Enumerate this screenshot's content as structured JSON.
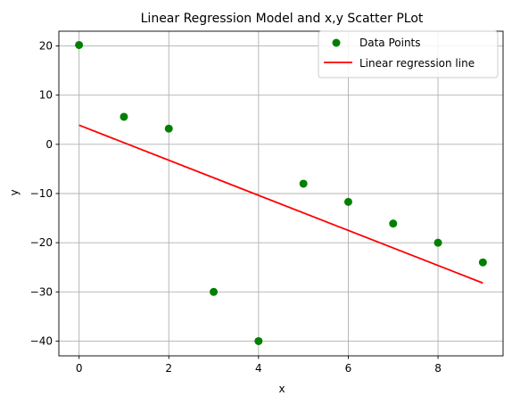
{
  "chart_data": {
    "type": "scatter",
    "title": "Linear Regression Model and x,y Scatter PLot",
    "xlabel": "x",
    "ylabel": "y",
    "xlim": [
      -0.45,
      9.45
    ],
    "ylim": [
      -43,
      23
    ],
    "xticks": [
      0,
      2,
      4,
      6,
      8
    ],
    "yticks": [
      20,
      10,
      0,
      -10,
      -20,
      -30,
      -40
    ],
    "grid": true,
    "legend_position": "top-right",
    "series": [
      {
        "name": "Data Points",
        "kind": "scatter",
        "color": "#008000",
        "x": [
          0,
          1,
          2,
          3,
          4,
          5,
          6,
          7,
          8,
          9
        ],
        "y": [
          20.2,
          5.6,
          3.2,
          -30,
          -40,
          -8,
          -11.7,
          -16.1,
          -20,
          -24
        ]
      },
      {
        "name": "Linear regression line",
        "kind": "line",
        "color": "#ff0000",
        "x": [
          0,
          9
        ],
        "y": [
          3.9,
          -28.2
        ]
      }
    ]
  }
}
